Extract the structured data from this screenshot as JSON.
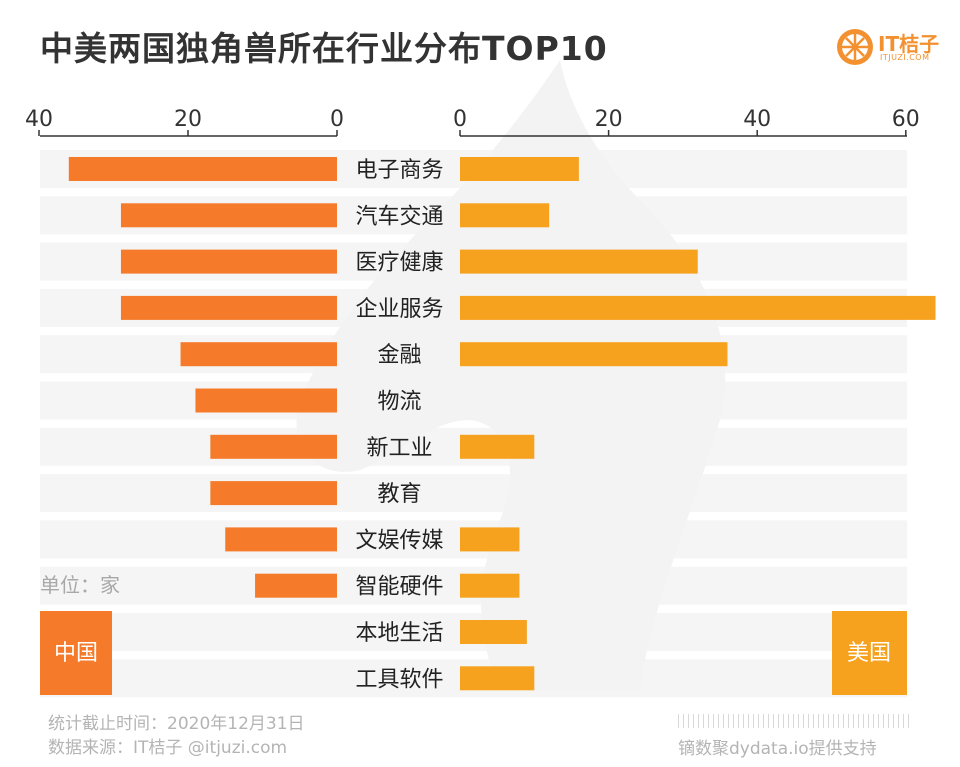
{
  "title": "中美两国独角兽所在行业分布TOP10",
  "brand": {
    "name": "IT桔子",
    "sub": "ITJUZI.COM"
  },
  "unit_label": "单位：家",
  "footer": {
    "date_line": "统计截止时间：2020年12月31日",
    "source_line": "数据来源：IT桔子 @itjuzi.com",
    "support": "镝数聚dydata.io提供支持"
  },
  "colors": {
    "china": "#f57a2a",
    "usa": "#f6a21f",
    "row_bg": "#f3f3f3",
    "text": "#222222",
    "axis": "#333333"
  },
  "chart_data": {
    "type": "bar",
    "title": "中美两国独角兽所在行业分布TOP10",
    "categories": [
      "电子商务",
      "汽车交通",
      "医疗健康",
      "企业服务",
      "金融",
      "物流",
      "新工业",
      "教育",
      "文娱传媒",
      "智能硬件",
      "本地生活",
      "工具软件"
    ],
    "series": [
      {
        "name": "中国",
        "values": [
          36,
          29,
          29,
          29,
          21,
          19,
          17,
          17,
          15,
          11,
          0,
          0
        ]
      },
      {
        "name": "美国",
        "values": [
          16,
          12,
          32,
          64,
          36,
          0,
          10,
          0,
          8,
          8,
          9,
          10
        ]
      }
    ],
    "left_ticks": [
      "40",
      "20",
      "0"
    ],
    "right_ticks": [
      "0",
      "20",
      "40",
      "60"
    ],
    "left_xlim": [
      0,
      40
    ],
    "right_xlim": [
      0,
      60
    ],
    "legend_left": "中国",
    "legend_right": "美国"
  }
}
